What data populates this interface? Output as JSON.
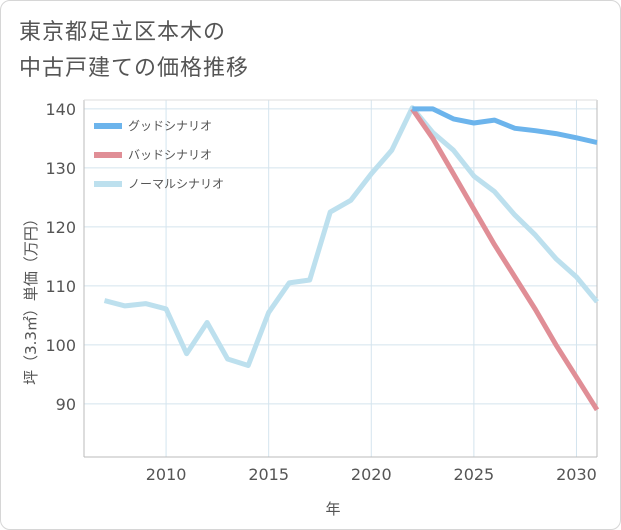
{
  "title_lines": [
    "東京都足立区本木の",
    "中古戸建ての価格推移"
  ],
  "chart_data": {
    "type": "line",
    "xlabel": "年",
    "ylabel": "坪（3.3㎡）単価（万円）",
    "xlim": [
      2006,
      2031
    ],
    "ylim": [
      81,
      141.5
    ],
    "xticks": [
      2010,
      2015,
      2020,
      2025,
      2030
    ],
    "yticks": [
      90,
      100,
      110,
      120,
      130,
      140
    ],
    "grid": true,
    "legend_position": "top-left",
    "series": [
      {
        "name": "グッドシナリオ",
        "color": "#6cb4ec",
        "x": [
          2022,
          2023,
          2024,
          2025,
          2026,
          2027,
          2028,
          2029,
          2030,
          2031
        ],
        "y": [
          140,
          140,
          138.3,
          137.6,
          138.1,
          136.7,
          136.3,
          135.8,
          135.1,
          134.3
        ]
      },
      {
        "name": "バッドシナリオ",
        "color": "#e08e96",
        "x": [
          2022,
          2023,
          2024,
          2025,
          2026,
          2027,
          2028,
          2029,
          2030,
          2031
        ],
        "y": [
          140,
          135,
          129,
          123,
          117,
          111.5,
          106,
          100,
          94.5,
          89
        ]
      },
      {
        "name": "ノーマルシナリオ",
        "color": "#bde0ee",
        "x": [
          2007,
          2008,
          2009,
          2010,
          2011,
          2012,
          2013,
          2014,
          2015,
          2016,
          2017,
          2018,
          2019,
          2020,
          2021,
          2022,
          2023,
          2024,
          2025,
          2026,
          2027,
          2028,
          2029,
          2030,
          2031
        ],
        "y": [
          107.5,
          106.6,
          107,
          106.1,
          98.5,
          103.8,
          97.6,
          96.5,
          105.5,
          110.5,
          111,
          122.5,
          124.5,
          129,
          133,
          140.2,
          136,
          133,
          128.6,
          126,
          122,
          118.6,
          114.6,
          111.5,
          107.3
        ]
      }
    ]
  }
}
